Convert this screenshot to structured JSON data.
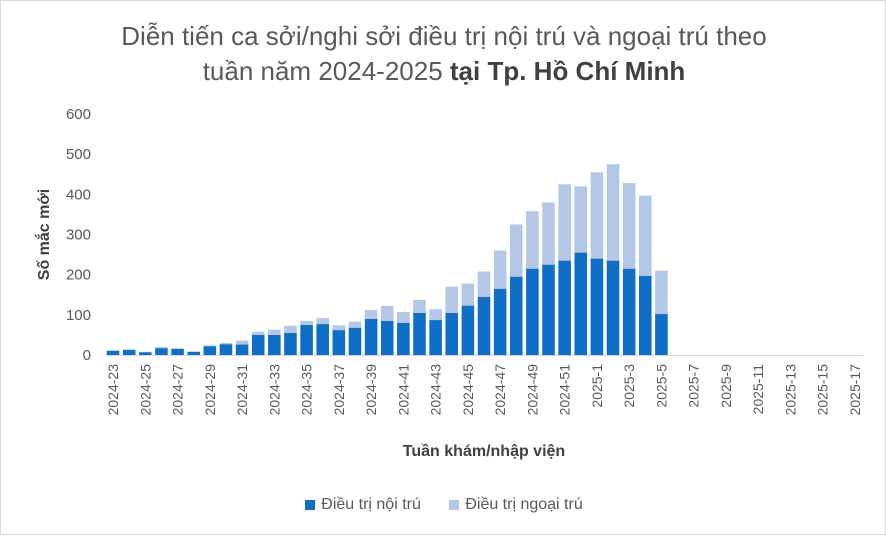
{
  "chart_data": {
    "type": "bar",
    "stacked": true,
    "title_line1": "Diễn tiến ca sởi/nghi sởi điều trị nội trú và ngoại trú theo",
    "title_line2_normal": "tuần năm 2024-2025 ",
    "title_line2_bold": "tại Tp. Hồ Chí Minh",
    "xlabel": "Tuần khám/nhập viện",
    "ylabel": "Số mắc mới",
    "ylim": [
      0,
      600
    ],
    "yticks": [
      0,
      100,
      200,
      300,
      400,
      500,
      600
    ],
    "grid": false,
    "legend_position": "bottom",
    "categories": [
      "2024-23",
      "2024-24",
      "2024-25",
      "2024-26",
      "2024-27",
      "2024-28",
      "2024-29",
      "2024-30",
      "2024-31",
      "2024-32",
      "2024-33",
      "2024-34",
      "2024-35",
      "2024-36",
      "2024-37",
      "2024-38",
      "2024-39",
      "2024-40",
      "2024-41",
      "2024-42",
      "2024-43",
      "2024-44",
      "2024-45",
      "2024-46",
      "2024-47",
      "2024-48",
      "2024-49",
      "2024-50",
      "2024-51",
      "2024-52",
      "2025-1",
      "2025-2",
      "2025-3",
      "2025-4",
      "2025-5",
      "2025-6",
      "2025-7",
      "2025-8",
      "2025-9",
      "2025-10",
      "2025-11",
      "2025-12",
      "2025-13",
      "2025-14",
      "2025-15",
      "2025-16",
      "2025-17"
    ],
    "tick_labels": [
      "2024-23",
      "2024-25",
      "2024-27",
      "2024-29",
      "2024-31",
      "2024-33",
      "2024-35",
      "2024-37",
      "2024-39",
      "2024-41",
      "2024-43",
      "2024-45",
      "2024-47",
      "2024-49",
      "2024-51",
      "2025-1",
      "2025-3",
      "2025-5",
      "2025-7",
      "2025-9",
      "2025-11",
      "2025-13",
      "2025-15",
      "2025-17"
    ],
    "series": [
      {
        "name": "Điều trị nội trú",
        "color": "#0f6fc6",
        "values": [
          10,
          13,
          7,
          17,
          15,
          8,
          22,
          27,
          26,
          50,
          50,
          55,
          75,
          77,
          62,
          68,
          90,
          85,
          80,
          105,
          87,
          105,
          123,
          145,
          165,
          195,
          215,
          225,
          235,
          255,
          240,
          235,
          215,
          197,
          102,
          0,
          0,
          0,
          0,
          0,
          0,
          0,
          0,
          0,
          0,
          0,
          0
        ]
      },
      {
        "name": "Điều trị ngoại trú",
        "color": "#b4c7e7",
        "values": [
          2,
          1,
          1,
          3,
          2,
          1,
          2,
          3,
          10,
          8,
          13,
          18,
          10,
          15,
          12,
          15,
          22,
          37,
          27,
          32,
          27,
          65,
          55,
          63,
          95,
          130,
          143,
          155,
          190,
          165,
          215,
          240,
          213,
          200,
          108,
          0,
          0,
          0,
          0,
          0,
          0,
          0,
          0,
          0,
          0,
          0,
          0
        ]
      }
    ]
  }
}
